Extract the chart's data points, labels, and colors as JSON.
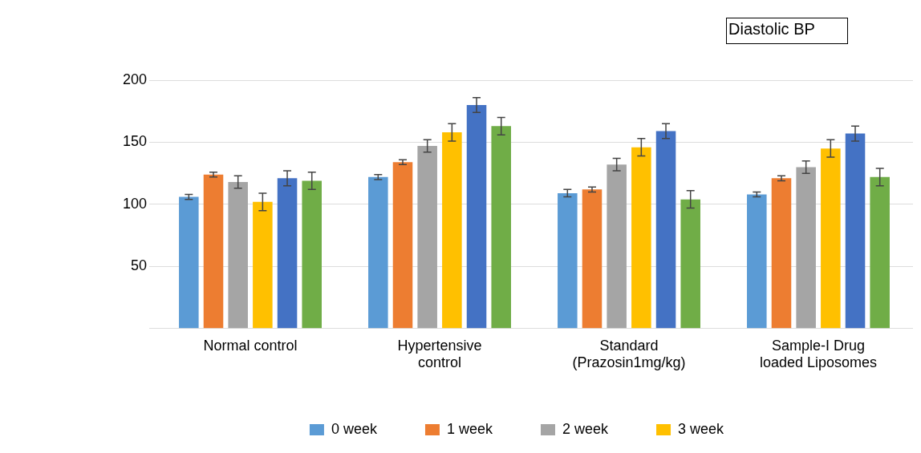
{
  "chart_data": {
    "type": "bar",
    "title": "Diastolic BP",
    "categories": [
      "Normal control",
      "Hypertensive control",
      "Standard (Prazosin1mg/kg)",
      "Sample-I Drug loaded Liposomes"
    ],
    "series": [
      {
        "name": "0 week",
        "color": "#5b9bd5",
        "values": [
          106,
          122,
          109,
          108
        ],
        "errors": [
          2,
          2,
          3,
          2
        ]
      },
      {
        "name": "1 week",
        "color": "#ed7d31",
        "values": [
          124,
          134,
          112,
          121
        ],
        "errors": [
          2,
          2,
          2,
          2
        ]
      },
      {
        "name": "2 week",
        "color": "#a5a5a5",
        "values": [
          118,
          147,
          132,
          130
        ],
        "errors": [
          5,
          5,
          5,
          5
        ]
      },
      {
        "name": "3 week",
        "color": "#ffc000",
        "values": [
          102,
          158,
          146,
          145
        ],
        "errors": [
          7,
          7,
          7,
          7
        ]
      },
      {
        "color": "#4472c4",
        "values": [
          121,
          180,
          159,
          157
        ],
        "errors": [
          6,
          6,
          6,
          6
        ]
      },
      {
        "color": "#70ad47",
        "values": [
          119,
          163,
          104,
          122
        ],
        "errors": [
          7,
          7,
          7,
          7
        ]
      }
    ],
    "ylim": [
      0,
      200
    ],
    "yticks": [
      {
        "value": 0,
        "label": null
      },
      50,
      100,
      150,
      200
    ],
    "grid": "y",
    "legend": "bottom"
  }
}
